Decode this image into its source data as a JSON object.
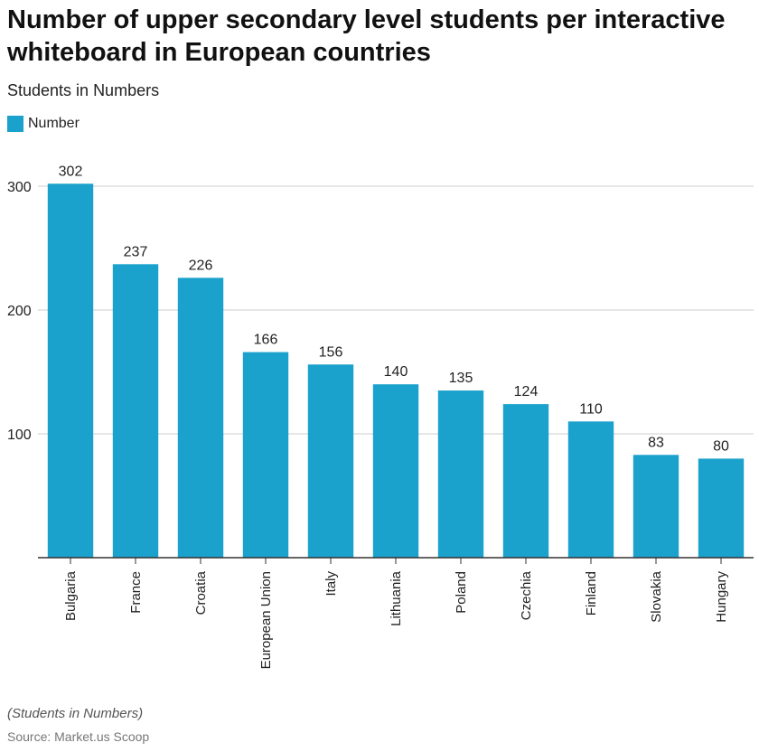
{
  "header": {
    "title": "Number of upper secondary level students per interactive whiteboard in European countries",
    "subtitle": "Students in Numbers"
  },
  "footer": {
    "note": "(Students in Numbers)",
    "source": "Source: Market.us Scoop"
  },
  "colors": {
    "bar": "#1aa1cc",
    "grid": "#cccccc",
    "axis": "#333333",
    "text": "#222222"
  },
  "chart_data": {
    "type": "bar",
    "title": "Number of upper secondary level students per interactive whiteboard in European countries",
    "subtitle": "Students in Numbers",
    "xlabel": "",
    "ylabel": "",
    "ylim": [
      0,
      330
    ],
    "yticks": [
      100,
      200,
      300
    ],
    "grid": true,
    "legend_position": "top-left",
    "categories": [
      "Bulgaria",
      "France",
      "Croatia",
      "European Union",
      "Italy",
      "Lithuania",
      "Poland",
      "Czechia",
      "Finland",
      "Slovakia",
      "Hungary"
    ],
    "series": [
      {
        "name": "Number",
        "values": [
          302,
          237,
          226,
          166,
          156,
          140,
          135,
          124,
          110,
          83,
          80
        ]
      }
    ]
  }
}
